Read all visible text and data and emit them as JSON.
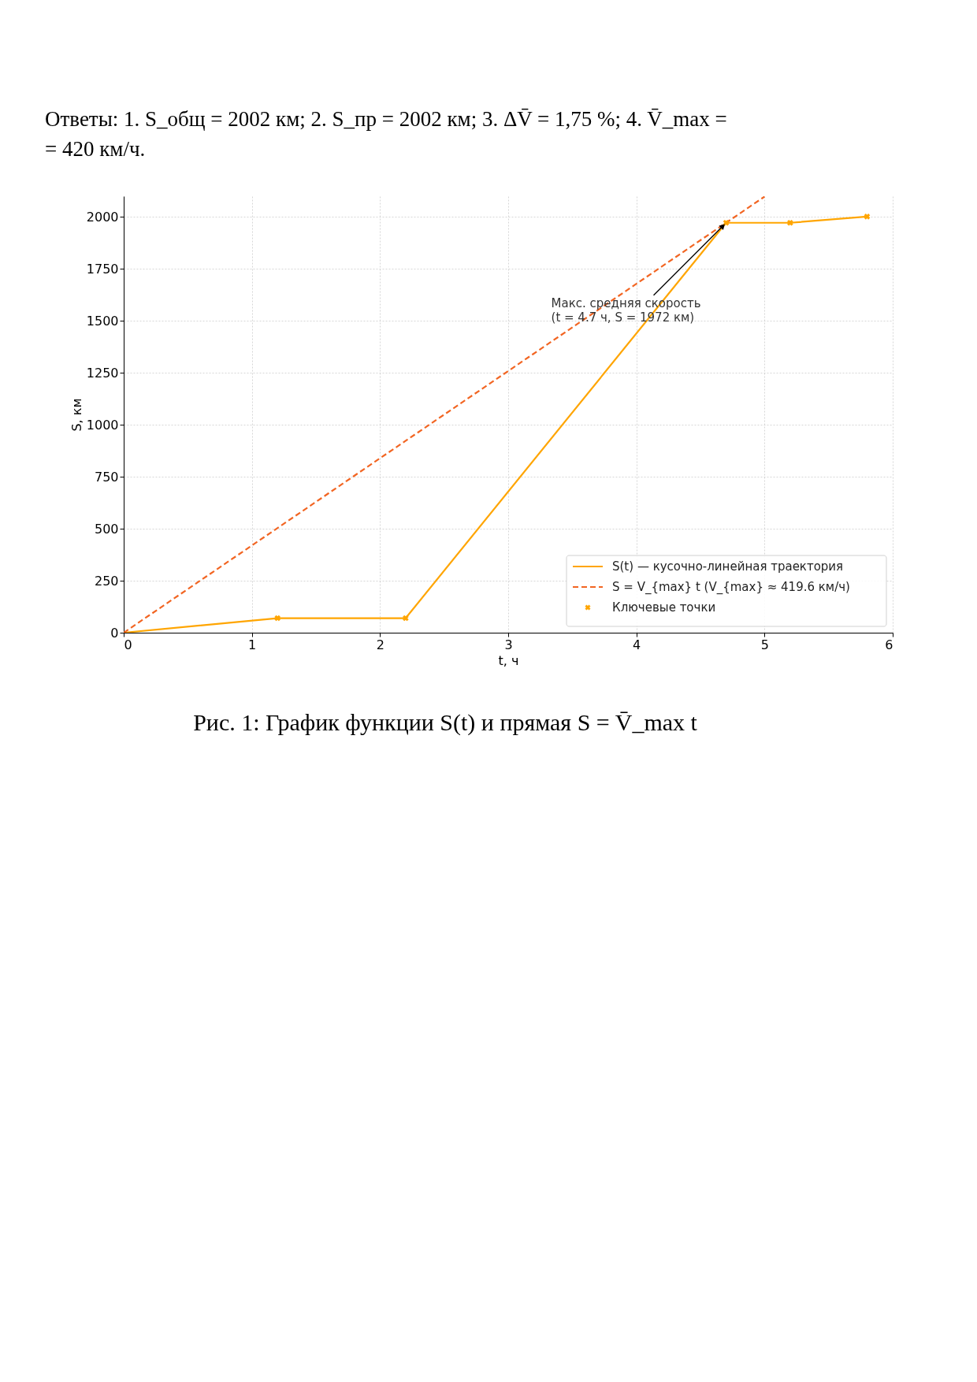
{
  "chart_data": {
    "type": "line",
    "title": "Ответы: 1. S_общ = 2002 км; 2. S_пр = 2002 км; 3. ΔV̄ = 1,75 %; 4. V̄_max =\n= 420 км/ч.",
    "xlabel": "t, ч",
    "ylabel": "S, км",
    "xlim": [
      0,
      6
    ],
    "ylim": [
      0,
      2100
    ],
    "xticks": [
      0,
      1,
      2,
      3,
      4,
      5,
      6
    ],
    "yticks": [
      0,
      250,
      500,
      750,
      1000,
      1250,
      1500,
      1750,
      2000
    ],
    "grid": true,
    "legend": "bottom right",
    "series": [
      {
        "name": "S(t) — кусочно-линейная траектория",
        "color": "#ffa500",
        "x": [
          0,
          1.2,
          2.2,
          4.7,
          5.2,
          5.8
        ],
        "values": [
          0,
          70,
          70,
          1972,
          1972,
          2002
        ],
        "line_style": "solid"
      },
      {
        "name": "S = V_{max} t (V_{max} ≈ 419.6 км/ч)",
        "color": "#f26522",
        "x": [
          0,
          5.0
        ],
        "values": [
          0,
          2098
        ],
        "line_style": "dashed"
      },
      {
        "type": "scatter",
        "name": "Ключевые точки",
        "color": "#ffa500",
        "marker": "cross",
        "x": [
          1.2,
          2.2,
          4.7,
          5.2,
          5.8
        ],
        "values": [
          70,
          70,
          1972,
          1972,
          2002
        ]
      }
    ],
    "annotations": [
      {
        "text": "Макс. средняя скорость\n(t = 4.7 ч, S = 1972 км)",
        "x": 4.7,
        "y": 1972
      },
      "Рис. 1: График функции S(t) и прямая S = V̄_max t"
    ]
  }
}
